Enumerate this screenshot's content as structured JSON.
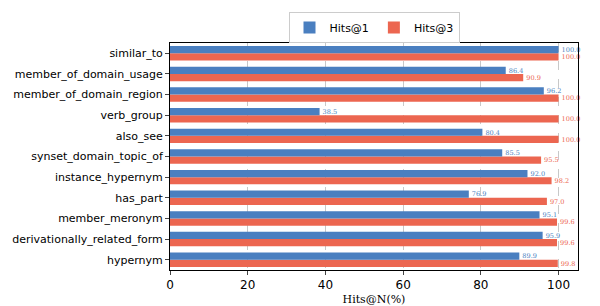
{
  "chart_data": {
    "type": "bar",
    "orientation": "horizontal",
    "categories": [
      "hypernym",
      "derivationally_related_form",
      "member_meronym",
      "has_part",
      "instance_hypernym",
      "synset_domain_topic_of",
      "also_see",
      "verb_group",
      "member_of_domain_region",
      "member_of_domain_usage",
      "similar_to"
    ],
    "series": [
      {
        "name": "Hits@1",
        "color": "#4a7fc0",
        "values": [
          89.9,
          95.9,
          95.1,
          76.9,
          92.0,
          85.5,
          80.4,
          38.5,
          96.2,
          86.4,
          100.0
        ],
        "value_labels": [
          "89.9",
          "95.9",
          "95.1",
          "76.9",
          "92.0",
          "85.5",
          "80.4",
          "38.5",
          "96.2",
          "86.4",
          "100.0"
        ]
      },
      {
        "name": "Hits@3",
        "color": "#ec6650",
        "values": [
          99.8,
          99.6,
          99.6,
          97.0,
          98.2,
          95.5,
          100.0,
          100.0,
          100.0,
          90.9,
          100.0
        ],
        "value_labels": [
          "99.8",
          "99.6",
          "99.6",
          "97.0",
          "98.2",
          "95.5",
          "100.0",
          "100.0",
          "100.0",
          "90.9",
          "100.0"
        ]
      }
    ],
    "x_label": "Hits@N(%)",
    "xlim": [
      0,
      105
    ],
    "xticks": [
      0,
      20,
      40,
      60,
      80,
      100
    ],
    "grid": true,
    "legend": "top",
    "data_labels": true
  }
}
